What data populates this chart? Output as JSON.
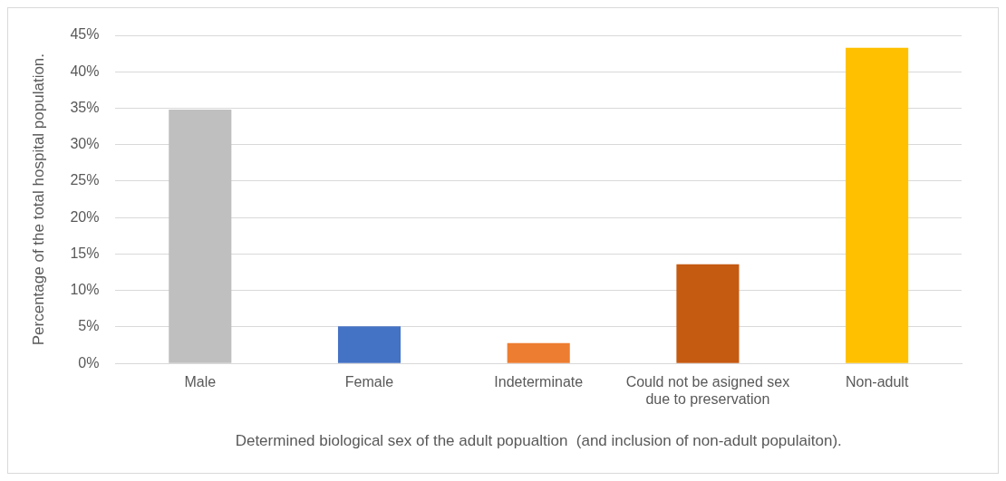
{
  "chart_data": {
    "type": "bar",
    "xlabel": "Determined biological sex of the adult popualtion  (and inclusion of non-adult populaiton).",
    "ylabel": "Percentage of the total hospital population.",
    "categories": [
      "Male",
      "Female",
      "Indeterminate",
      "Could not be asigned sex due to preservation",
      "Non-adult"
    ],
    "values": [
      34.8,
      5.1,
      2.8,
      13.6,
      43.3
    ],
    "colors": [
      "#bfbfbf",
      "#4472c4",
      "#ed7d31",
      "#c55a11",
      "#ffc000"
    ],
    "ylim": [
      0,
      45
    ],
    "yticks": [
      {
        "value": 0,
        "label": "0%"
      },
      {
        "value": 5,
        "label": "5%"
      },
      {
        "value": 10,
        "label": "10%"
      },
      {
        "value": 15,
        "label": "15%"
      },
      {
        "value": 20,
        "label": "20%"
      },
      {
        "value": 25,
        "label": "25%"
      },
      {
        "value": 30,
        "label": "30%"
      },
      {
        "value": 35,
        "label": "35%"
      },
      {
        "value": 40,
        "label": "40%"
      },
      {
        "value": 45,
        "label": "45%"
      }
    ],
    "grid": "y",
    "legend": false
  }
}
